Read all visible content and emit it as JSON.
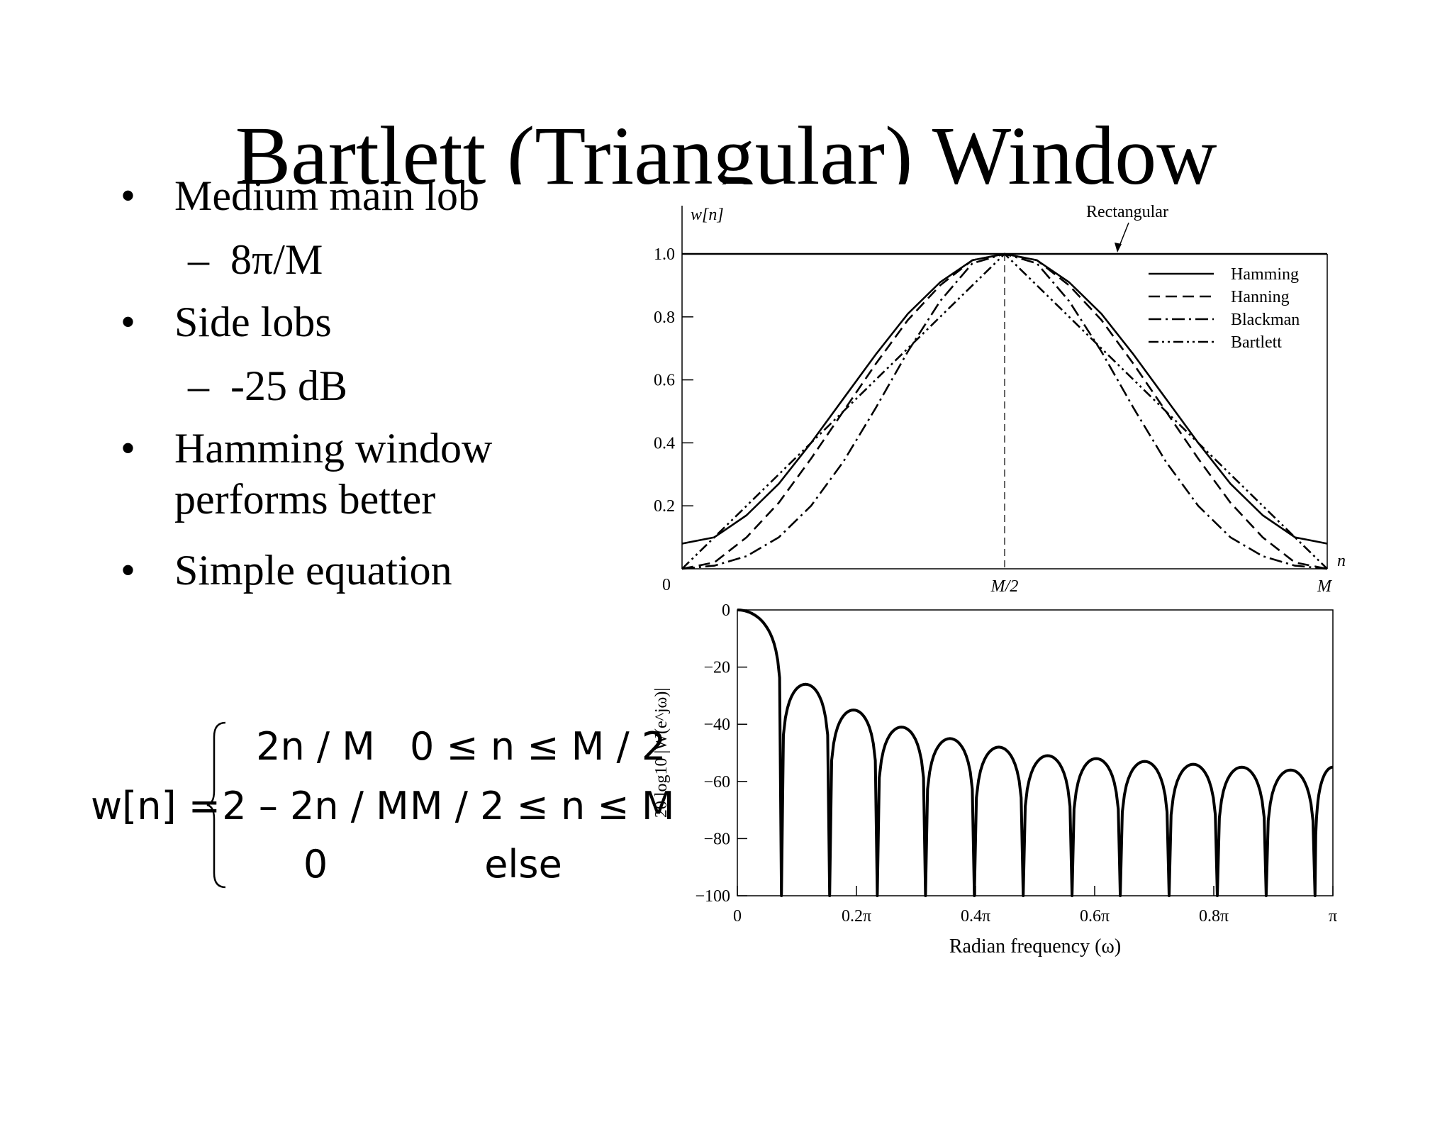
{
  "slide": {
    "title": "Bartlett (Triangular) Window",
    "bullets": [
      {
        "text": "Medium main lob",
        "sub": "8π/M"
      },
      {
        "text": "Side lobs",
        "sub": "-25 dB"
      },
      {
        "text": "Hamming window performs better",
        "sub": null
      },
      {
        "text": "Simple equation",
        "sub": null
      }
    ],
    "bullet_symbol": "•",
    "sub_symbol": "–"
  },
  "equation": {
    "lhs": "w[n] =",
    "rows": [
      {
        "expr": "2n / M",
        "cond": "0 ≤ n ≤ M / 2"
      },
      {
        "expr": "2 – 2n / M",
        "cond": "M / 2 ≤ n ≤ M"
      },
      {
        "expr": "0",
        "cond": "else"
      }
    ]
  },
  "chart_data": [
    {
      "type": "line",
      "title": "",
      "ylabel": "w[n]",
      "xlabel": "n",
      "xlim": [
        0,
        1
      ],
      "ylim": [
        0,
        1.0
      ],
      "yticks": [
        0.2,
        0.4,
        0.6,
        0.8,
        1.0
      ],
      "ytick_labels": [
        "0.2",
        "0.4",
        "0.6",
        "0.8",
        "1.0"
      ],
      "xtick_labels": [
        "0",
        "M/2",
        "M"
      ],
      "origin_label": "0",
      "annotation": "Rectangular",
      "legend_position": "top-right",
      "x_values": [
        0,
        0.05,
        0.1,
        0.15,
        0.2,
        0.25,
        0.3,
        0.35,
        0.4,
        0.45,
        0.5,
        0.55,
        0.6,
        0.65,
        0.7,
        0.75,
        0.8,
        0.85,
        0.9,
        0.95,
        1
      ],
      "series": [
        {
          "name": "Rectangular",
          "style": "solid",
          "values": [
            1,
            1,
            1,
            1,
            1,
            1,
            1,
            1,
            1,
            1,
            1,
            1,
            1,
            1,
            1,
            1,
            1,
            1,
            1,
            1,
            1
          ]
        },
        {
          "name": "Hamming",
          "style": "solid",
          "values": [
            0.08,
            0.1,
            0.17,
            0.27,
            0.4,
            0.54,
            0.68,
            0.81,
            0.91,
            0.98,
            1,
            0.98,
            0.91,
            0.81,
            0.68,
            0.54,
            0.4,
            0.27,
            0.17,
            0.1,
            0.08
          ]
        },
        {
          "name": "Hanning",
          "style": "dashed",
          "values": [
            0,
            0.02,
            0.1,
            0.21,
            0.35,
            0.5,
            0.65,
            0.79,
            0.9,
            0.98,
            1,
            0.98,
            0.9,
            0.79,
            0.65,
            0.5,
            0.35,
            0.21,
            0.1,
            0.02,
            0
          ]
        },
        {
          "name": "Blackman",
          "style": "dash-dot",
          "values": [
            0,
            0.01,
            0.04,
            0.1,
            0.2,
            0.34,
            0.51,
            0.69,
            0.85,
            0.97,
            1,
            0.97,
            0.85,
            0.69,
            0.51,
            0.34,
            0.2,
            0.1,
            0.04,
            0.01,
            0
          ]
        },
        {
          "name": "Bartlett",
          "style": "dash-dot-dot",
          "values": [
            0,
            0.1,
            0.2,
            0.3,
            0.4,
            0.5,
            0.6,
            0.7,
            0.8,
            0.9,
            1,
            0.9,
            0.8,
            0.7,
            0.6,
            0.5,
            0.4,
            0.3,
            0.2,
            0.1,
            0
          ]
        }
      ]
    },
    {
      "type": "line",
      "title": "",
      "xlabel": "Radian frequency (ω)",
      "ylabel": "20 log10 |W(e^jω)|",
      "xlim": [
        0,
        1
      ],
      "ylim": [
        -100,
        0
      ],
      "x_unit": "π rad",
      "yticks": [
        0,
        -20,
        -40,
        -60,
        -80,
        -100
      ],
      "ytick_labels": [
        "0",
        "−20",
        "−40",
        "−60",
        "−80",
        "−100"
      ],
      "xticks": [
        0,
        0.2,
        0.4,
        0.6,
        0.8,
        1.0
      ],
      "xtick_labels": [
        "0",
        "0.2π",
        "0.4π",
        "0.6π",
        "0.8π",
        "π"
      ],
      "series": [
        {
          "name": "Bartlett",
          "nulls": [
            0.074,
            0.155,
            0.235,
            0.316,
            0.398,
            0.48,
            0.562,
            0.643,
            0.725,
            0.806,
            0.888,
            0.97
          ],
          "peaks": [
            {
              "x": 0,
              "y": 0
            },
            {
              "x": 0.115,
              "y": -26
            },
            {
              "x": 0.195,
              "y": -35
            },
            {
              "x": 0.276,
              "y": -41
            },
            {
              "x": 0.357,
              "y": -45
            },
            {
              "x": 0.439,
              "y": -48
            },
            {
              "x": 0.521,
              "y": -51
            },
            {
              "x": 0.602,
              "y": -52
            },
            {
              "x": 0.684,
              "y": -53
            },
            {
              "x": 0.765,
              "y": -54
            },
            {
              "x": 0.847,
              "y": -55
            },
            {
              "x": 0.929,
              "y": -56
            },
            {
              "x": 1.0,
              "y": -55
            }
          ]
        }
      ]
    }
  ]
}
